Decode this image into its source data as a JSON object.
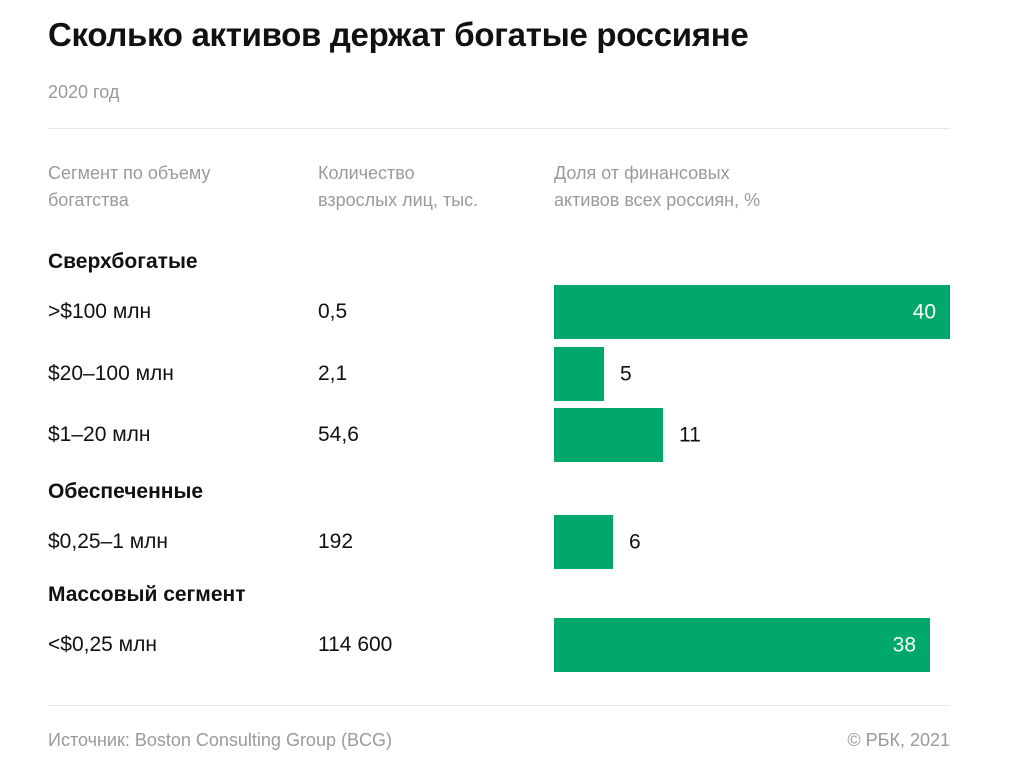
{
  "title": "Сколько активов держат богатые россияне",
  "subtitle": "2020 год",
  "columns": {
    "segment": [
      "Сегмент по объему",
      "богатства"
    ],
    "count": [
      "Количество",
      "взрослых лиц, тыс."
    ],
    "share": [
      "Доля от финансовых",
      "активов всех россиян, %"
    ]
  },
  "groups": [
    "Сверхбогатые",
    "Обеспеченные",
    "Массовый сегмент"
  ],
  "chart_data": {
    "type": "bar",
    "orientation": "horizontal",
    "title": "Сколько активов держат богатые россияне",
    "subtitle": "2020 год",
    "xlabel": "Доля от финансовых активов всех россиян, %",
    "ylabel": "Сегмент по объему богатства",
    "xlim": [
      0,
      40
    ],
    "grid": false,
    "color": "#00a86b",
    "categories": [
      ">$100 млн",
      "$20–100 млн",
      "$1–20 млн",
      "$0,25–1 млн",
      "<$0,25 млн"
    ],
    "groups": [
      "Сверхбогатые",
      "Сверхбогатые",
      "Сверхбогатые",
      "Обеспеченные",
      "Массовый сегмент"
    ],
    "adults_thousands": [
      "0,5",
      "2,1",
      "54,6",
      "192",
      "114 600"
    ],
    "values": [
      40,
      5,
      11,
      6,
      38
    ]
  },
  "footer": {
    "source": "Источник: Boston Consulting Group (BCG)",
    "copyright": "© РБК, 2021"
  }
}
